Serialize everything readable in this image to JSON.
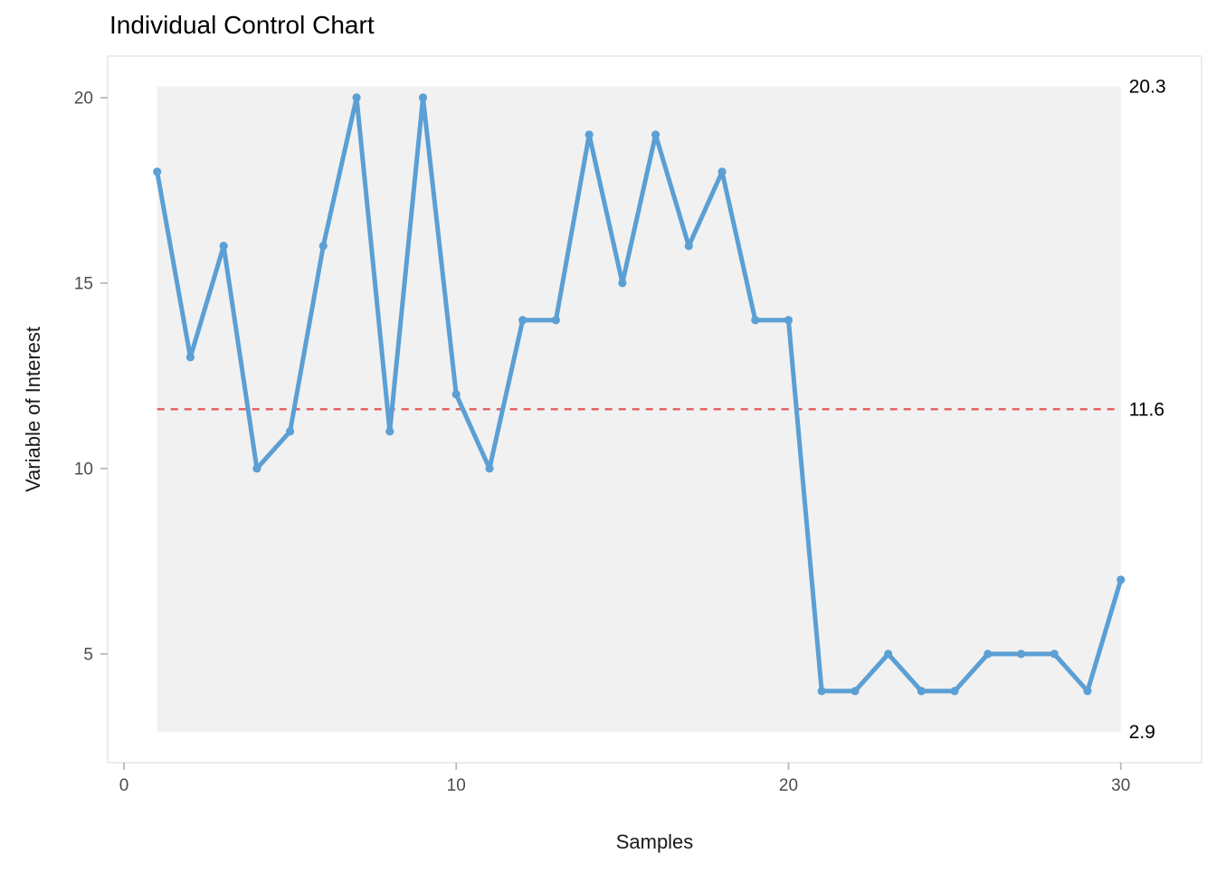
{
  "chart_data": {
    "type": "line",
    "title": "Individual Control Chart",
    "xlabel": "Samples",
    "ylabel": "Variable of Interest",
    "x": [
      1,
      2,
      3,
      4,
      5,
      6,
      7,
      8,
      9,
      10,
      11,
      12,
      13,
      14,
      15,
      16,
      17,
      18,
      19,
      20,
      21,
      22,
      23,
      24,
      25,
      26,
      27,
      28,
      29,
      30
    ],
    "values": [
      18,
      13,
      16,
      10,
      11,
      16,
      20,
      11,
      20,
      12,
      10,
      14,
      14,
      19,
      15,
      19,
      16,
      18,
      14,
      14,
      4,
      4,
      5,
      4,
      4,
      5,
      5,
      5,
      4,
      7
    ],
    "center_line": {
      "value": 11.6,
      "label": "11.6"
    },
    "upper_limit": {
      "value": 20.3,
      "label": "20.3"
    },
    "lower_limit": {
      "value": 2.9,
      "label": "2.9"
    },
    "x_ticks": [
      0,
      10,
      20,
      30
    ],
    "y_ticks": [
      5,
      10,
      15,
      20
    ],
    "xlim": [
      -0.49,
      32.43
    ],
    "ylim": [
      2.07,
      21.12
    ],
    "grid": false,
    "legend": "none",
    "colors": {
      "series": "#5B9FD4",
      "center_line": "#E25C5C",
      "limit_band": "#F1F1F1",
      "panel_border": "#E3E3E3",
      "tick_mark": "#B8B8B8",
      "tick_label": "#4D4D4D",
      "axis_title": "#1A1A1A",
      "title": "#000000",
      "annotation": "#000000"
    }
  }
}
